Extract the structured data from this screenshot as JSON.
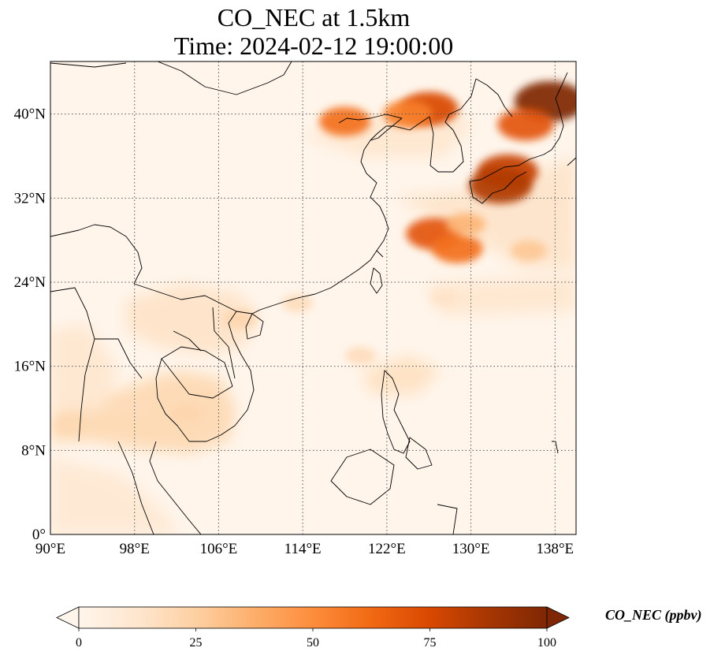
{
  "title": {
    "line1": "CO_NEC at 1.5km",
    "line2": "Time: 2024-02-12 19:00:00"
  },
  "map": {
    "lon_range": [
      90,
      140
    ],
    "lat_range": [
      0,
      45
    ],
    "lon_ticks": [
      {
        "value": 90,
        "label": "90°E"
      },
      {
        "value": 98,
        "label": "98°E"
      },
      {
        "value": 106,
        "label": "106°E"
      },
      {
        "value": 114,
        "label": "114°E"
      },
      {
        "value": 122,
        "label": "122°E"
      },
      {
        "value": 130,
        "label": "130°E"
      },
      {
        "value": 138,
        "label": "138°E"
      }
    ],
    "lat_ticks": [
      {
        "value": 0,
        "label": "0°"
      },
      {
        "value": 8,
        "label": "8°N"
      },
      {
        "value": 16,
        "label": "16°N"
      },
      {
        "value": 24,
        "label": "24°N"
      },
      {
        "value": 32,
        "label": "32°N"
      },
      {
        "value": 40,
        "label": "40°N"
      }
    ],
    "gridlines": true,
    "hotspots": [
      {
        "lon": 137.5,
        "lat": 41.2,
        "value": 100
      },
      {
        "lon": 135.2,
        "lat": 39.0,
        "value": 70
      },
      {
        "lon": 126.0,
        "lat": 40.5,
        "value": 75
      },
      {
        "lon": 124.0,
        "lat": 40.0,
        "value": 55
      },
      {
        "lon": 118.0,
        "lat": 39.3,
        "value": 60
      },
      {
        "lon": 133.5,
        "lat": 34.5,
        "value": 80
      },
      {
        "lon": 132.8,
        "lat": 33.2,
        "value": 85
      },
      {
        "lon": 126.5,
        "lat": 28.6,
        "value": 70
      },
      {
        "lon": 128.7,
        "lat": 27.2,
        "value": 60
      },
      {
        "lon": 129.5,
        "lat": 29.5,
        "value": 35
      },
      {
        "lon": 135.5,
        "lat": 27.0,
        "value": 28
      },
      {
        "lon": 108.0,
        "lat": 20.5,
        "value": 22
      },
      {
        "lon": 113.5,
        "lat": 22.0,
        "value": 18
      },
      {
        "lon": 103.0,
        "lat": 11.5,
        "value": 22
      },
      {
        "lon": 92.0,
        "lat": 10.5,
        "value": 20
      },
      {
        "lon": 98.0,
        "lat": 12.0,
        "value": 18
      },
      {
        "lon": 119.5,
        "lat": 17.0,
        "value": 18
      },
      {
        "lon": 127.5,
        "lat": 22.5,
        "value": 14
      }
    ]
  },
  "colorbar": {
    "label": "CO_NEC (ppbv)",
    "min": 0,
    "max": 100,
    "ticks": [
      {
        "value": 0,
        "label": "0"
      },
      {
        "value": 25,
        "label": "25"
      },
      {
        "value": 50,
        "label": "50"
      },
      {
        "value": 75,
        "label": "75"
      },
      {
        "value": 100,
        "label": "100"
      }
    ],
    "colors": [
      "#fff5eb",
      "#fee6ce",
      "#fdd0a2",
      "#fdae6b",
      "#fd8d3c",
      "#f16913",
      "#d94801",
      "#a63603",
      "#7f2704"
    ]
  }
}
